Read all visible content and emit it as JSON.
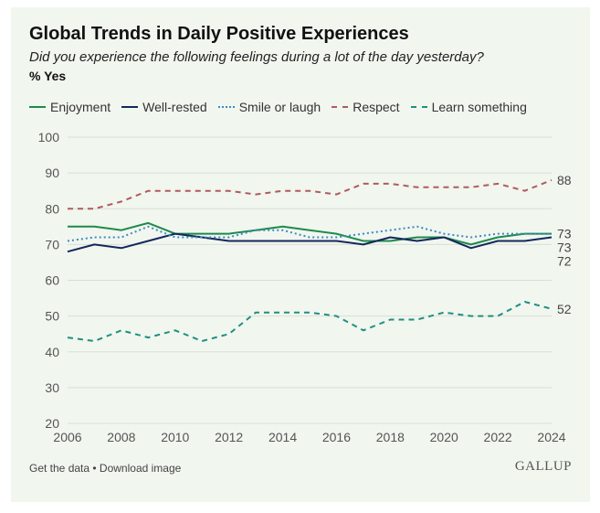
{
  "chart_data": {
    "type": "line",
    "title": "Global Trends in Daily Positive Experiences",
    "subtitle": "Did you experience the following feelings during a lot of the day yesterday?",
    "unit_label": "% Yes",
    "x": [
      2006,
      2007,
      2008,
      2009,
      2010,
      2011,
      2012,
      2013,
      2014,
      2015,
      2016,
      2017,
      2018,
      2019,
      2020,
      2021,
      2022,
      2023,
      2024
    ],
    "x_ticks": [
      "2006",
      "2008",
      "2010",
      "2012",
      "2014",
      "2016",
      "2018",
      "2020",
      "2022",
      "2024"
    ],
    "y_ticks": [
      "20",
      "30",
      "40",
      "50",
      "60",
      "70",
      "80",
      "90",
      "100"
    ],
    "xlim": [
      2006,
      2024
    ],
    "ylim": [
      20,
      100
    ],
    "grid": true,
    "legend_position": "top",
    "series": [
      {
        "name": "Enjoyment",
        "color": "#1e8a4c",
        "style": "solid",
        "values": [
          75,
          75,
          74,
          76,
          73,
          73,
          73,
          74,
          75,
          74,
          73,
          71,
          71,
          72,
          72,
          70,
          72,
          73,
          73
        ],
        "end_label": "73"
      },
      {
        "name": "Well-rested",
        "color": "#14285c",
        "style": "solid",
        "values": [
          68,
          70,
          69,
          71,
          73,
          72,
          71,
          71,
          71,
          71,
          71,
          70,
          72,
          71,
          72,
          69,
          71,
          71,
          72
        ],
        "end_label": "72"
      },
      {
        "name": "Smile or laugh",
        "color": "#3b8ac4",
        "style": "dotted",
        "values": [
          71,
          72,
          72,
          75,
          72,
          72,
          72,
          74,
          74,
          72,
          72,
          73,
          74,
          75,
          73,
          72,
          73,
          73,
          73
        ],
        "end_label": "73"
      },
      {
        "name": "Respect",
        "color": "#b05a5f",
        "style": "dashed",
        "values": [
          80,
          80,
          82,
          85,
          85,
          85,
          85,
          84,
          85,
          85,
          84,
          87,
          87,
          86,
          86,
          86,
          87,
          85,
          88
        ],
        "end_label": "88"
      },
      {
        "name": "Learn something",
        "color": "#1f8f82",
        "style": "dashed",
        "values": [
          44,
          43,
          46,
          44,
          46,
          43,
          45,
          51,
          51,
          51,
          50,
          46,
          49,
          49,
          51,
          50,
          50,
          54,
          52
        ],
        "end_label": "52"
      }
    ]
  },
  "footer": {
    "get_data": "Get the data",
    "separator": " • ",
    "download": "Download image",
    "logo": "GALLUP"
  }
}
